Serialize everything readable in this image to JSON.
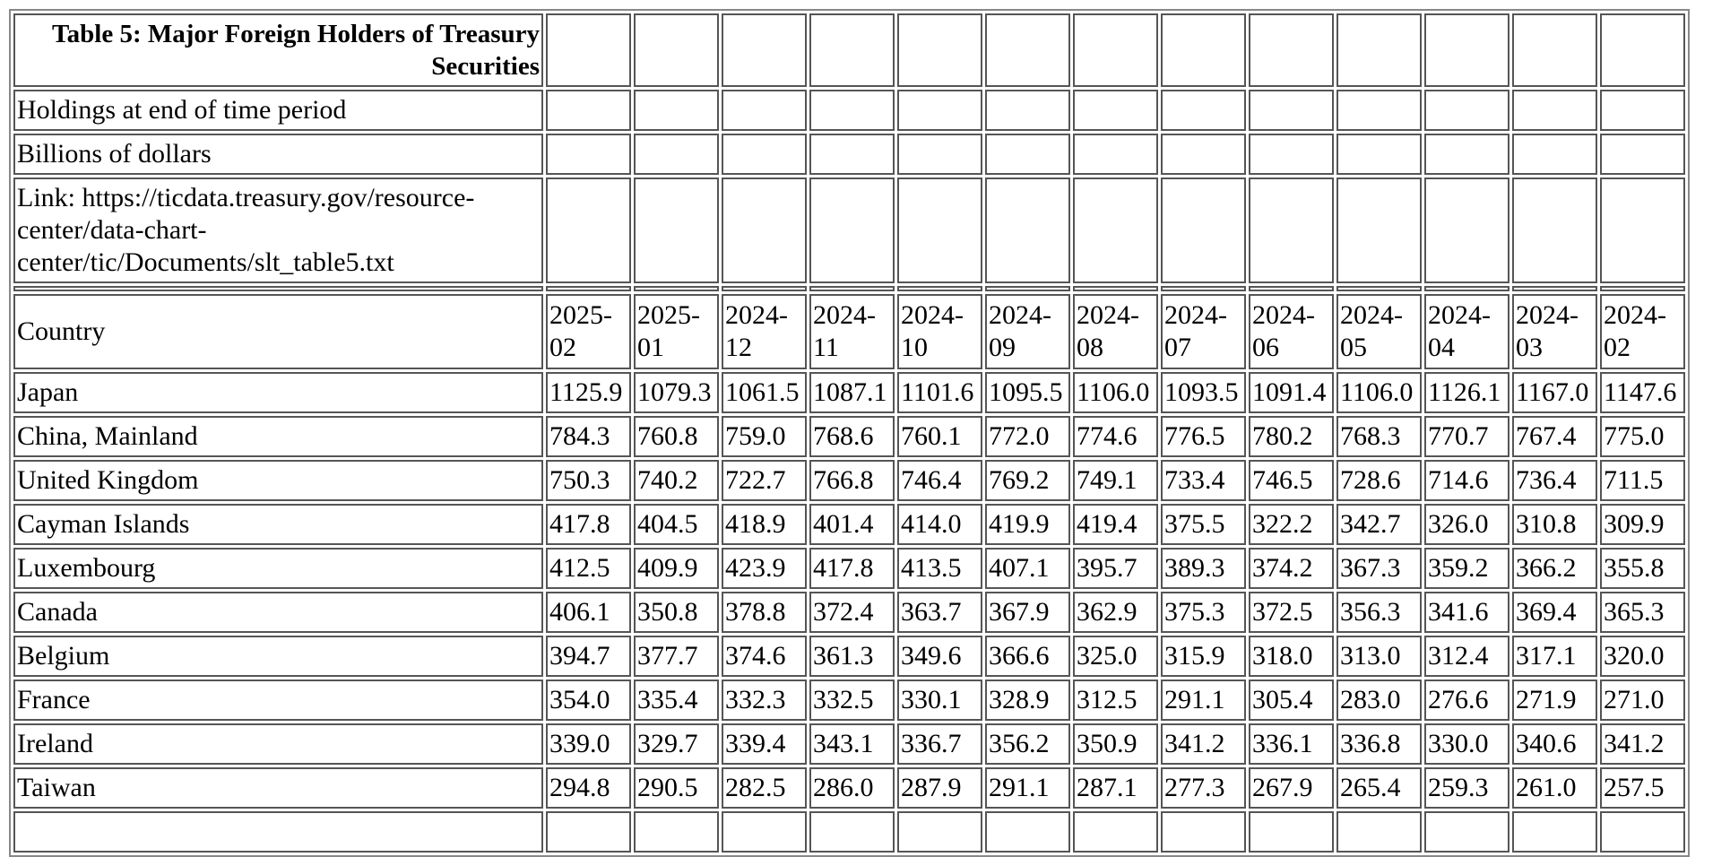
{
  "header": {
    "title": "Table 5: Major Foreign Holders of Treasury Securities",
    "subtitle": "Holdings at end of time period",
    "unit": "Billions of dollars",
    "link": "Link: https://ticdata.treasury.gov/resource-center/data-chart-center/tic/Documents/slt_table5.txt"
  },
  "table": {
    "columns": [
      "Country",
      "2025-02",
      "2025-01",
      "2024-12",
      "2024-11",
      "2024-10",
      "2024-09",
      "2024-08",
      "2024-07",
      "2024-06",
      "2024-05",
      "2024-04",
      "2024-03",
      "2024-02"
    ],
    "rows": [
      [
        "Japan",
        "1125.9",
        "1079.3",
        "1061.5",
        "1087.1",
        "1101.6",
        "1095.5",
        "1106.0",
        "1093.5",
        "1091.4",
        "1106.0",
        "1126.1",
        "1167.0",
        "1147.6"
      ],
      [
        "China, Mainland",
        "784.3",
        "760.8",
        "759.0",
        "768.6",
        "760.1",
        "772.0",
        "774.6",
        "776.5",
        "780.2",
        "768.3",
        "770.7",
        "767.4",
        "775.0"
      ],
      [
        "United Kingdom",
        "750.3",
        "740.2",
        "722.7",
        "766.8",
        "746.4",
        "769.2",
        "749.1",
        "733.4",
        "746.5",
        "728.6",
        "714.6",
        "736.4",
        "711.5"
      ],
      [
        "Cayman Islands",
        "417.8",
        "404.5",
        "418.9",
        "401.4",
        "414.0",
        "419.9",
        "419.4",
        "375.5",
        "322.2",
        "342.7",
        "326.0",
        "310.8",
        "309.9"
      ],
      [
        "Luxembourg",
        "412.5",
        "409.9",
        "423.9",
        "417.8",
        "413.5",
        "407.1",
        "395.7",
        "389.3",
        "374.2",
        "367.3",
        "359.2",
        "366.2",
        "355.8"
      ],
      [
        "Canada",
        "406.1",
        "350.8",
        "378.8",
        "372.4",
        "363.7",
        "367.9",
        "362.9",
        "375.3",
        "372.5",
        "356.3",
        "341.6",
        "369.4",
        "365.3"
      ],
      [
        "Belgium",
        "394.7",
        "377.7",
        "374.6",
        "361.3",
        "349.6",
        "366.6",
        "325.0",
        "315.9",
        "318.0",
        "313.0",
        "312.4",
        "317.1",
        "320.0"
      ],
      [
        "France",
        "354.0",
        "335.4",
        "332.3",
        "332.5",
        "330.1",
        "328.9",
        "312.5",
        "291.1",
        "305.4",
        "283.0",
        "276.6",
        "271.9",
        "271.0"
      ],
      [
        "Ireland",
        "339.0",
        "329.7",
        "339.4",
        "343.1",
        "336.7",
        "356.2",
        "350.9",
        "341.2",
        "336.1",
        "336.8",
        "330.0",
        "340.6",
        "341.2"
      ],
      [
        "Taiwan",
        "294.8",
        "290.5",
        "282.5",
        "286.0",
        "287.9",
        "291.1",
        "287.1",
        "277.3",
        "267.9",
        "265.4",
        "259.3",
        "261.0",
        "257.5"
      ]
    ]
  }
}
